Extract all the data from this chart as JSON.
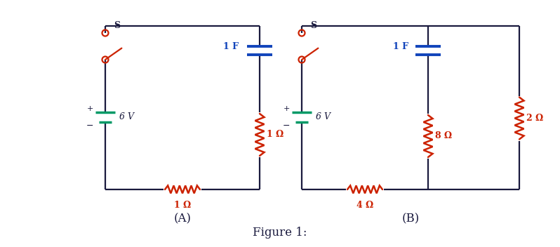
{
  "fig_width": 7.98,
  "fig_height": 3.52,
  "dpi": 100,
  "bg_color": "#ffffff",
  "wire_color": "#1a1a3e",
  "resistor_color": "#cc2200",
  "capacitor_color": "#1144bb",
  "battery_color": "#009966",
  "switch_color": "#cc2200",
  "label_color": "#1a1a3e",
  "figure_label": "Figure 1:",
  "circuit_A_label": "(A)",
  "circuit_B_label": "(B)",
  "switch_label": "S",
  "battery_label": "6 V",
  "plus_label": "+",
  "minus_label": "−",
  "cap_label_A": "1 F",
  "res_bottom_A": "1 Ω",
  "res_right_A": "1 Ω",
  "cap_label_B": "1 F",
  "res_bottom_B": "4 Ω",
  "res_mid_B": "8 Ω",
  "res_right_B": "2 Ω",
  "wire_lw": 1.6,
  "resistor_lw": 1.8,
  "cap_lw": 2.8,
  "bat_lw": 2.5,
  "switch_lw": 1.6,
  "circle_r": 0.045
}
